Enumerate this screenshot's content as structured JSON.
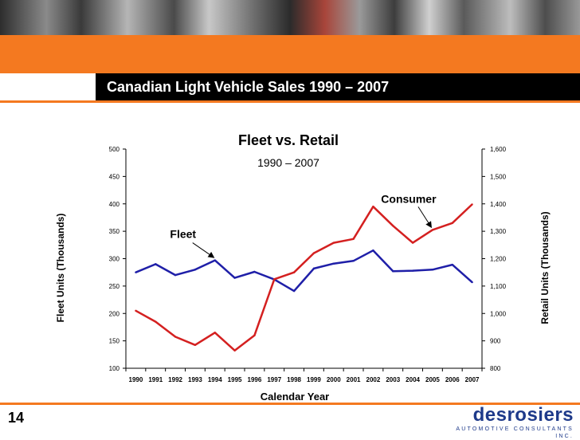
{
  "slide": {
    "title": "Canadian Light Vehicle Sales 1990 – 2007",
    "number": "14",
    "logo_text": "desrosiers",
    "logo_subtext": "AUTOMOTIVE CONSULTANTS INC."
  },
  "colors": {
    "accent": "#f47920",
    "title_bar": "#000000",
    "fleet": "#1f1fa8",
    "consumer": "#d42020",
    "logo": "#1e3a8a"
  },
  "chart_data": {
    "type": "line",
    "title": "Fleet vs. Retail",
    "subtitle": "1990 – 2007",
    "xlabel": "Calendar Year",
    "ylabel_left": "Fleet  Units (Thousands)",
    "ylabel_right": "Retail Units (Thousands)",
    "categories": [
      "1990",
      "1991",
      "1992",
      "1993",
      "1994",
      "1995",
      "1996",
      "1997",
      "1998",
      "1999",
      "2000",
      "2001",
      "2002",
      "2003",
      "2004",
      "2005",
      "2006",
      "2007"
    ],
    "left_axis": {
      "min": 100,
      "max": 500,
      "ticks": [
        "100",
        "150",
        "200",
        "250",
        "300",
        "350",
        "400",
        "450",
        "500"
      ]
    },
    "right_axis": {
      "min": 800,
      "max": 1600,
      "ticks": [
        "800",
        "900",
        "1,000",
        "1,100",
        "1,200",
        "1,300",
        "1,400",
        "1,500",
        "1,600"
      ]
    },
    "grid": false,
    "series": [
      {
        "name": "Fleet",
        "axis": "left",
        "color": "#1f1fa8",
        "values": [
          275,
          290,
          270,
          280,
          297,
          265,
          276,
          262,
          241,
          282,
          291,
          296,
          315,
          277,
          278,
          280,
          289,
          257
        ]
      },
      {
        "name": "Consumer",
        "axis": "right",
        "color": "#d42020",
        "values": [
          1010,
          970,
          915,
          885,
          930,
          865,
          920,
          1125,
          1150,
          1220,
          1258,
          1272,
          1390,
          1320,
          1258,
          1305,
          1330,
          1398
        ]
      }
    ],
    "annotations": [
      {
        "text": "Fleet",
        "series": "Fleet",
        "target_year": "1994"
      },
      {
        "text": "Consumer",
        "series": "Consumer",
        "target_year": "2005"
      }
    ]
  }
}
